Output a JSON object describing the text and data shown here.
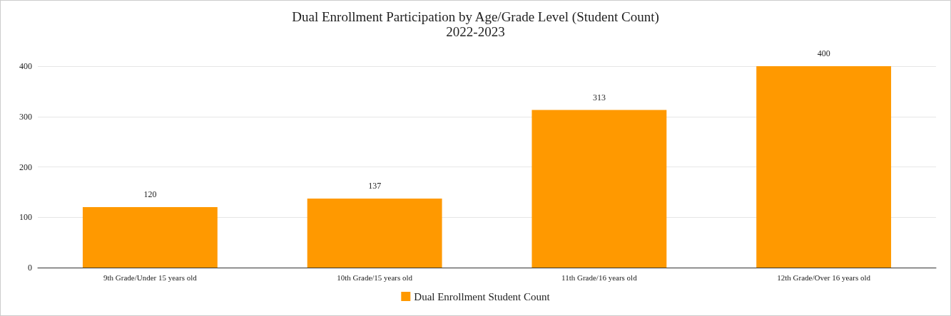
{
  "chart_data": {
    "type": "bar",
    "title": "Dual Enrollment Participation by Age/Grade Level (Student Count)",
    "subtitle": "2022-2023",
    "categories": [
      "9th Grade/Under 15 years old",
      "10th Grade/15 years old",
      "11th Grade/16 years old",
      "12th Grade/Over 16 years old"
    ],
    "series": [
      {
        "name": "Dual Enrollment Student Count",
        "color": "#ff9900",
        "values": [
          120,
          137,
          313,
          400
        ]
      }
    ],
    "ylim": [
      0,
      400
    ],
    "yticks": [
      0,
      100,
      200,
      300,
      400
    ],
    "grid": "y",
    "legend": "bottom",
    "data_labels": true
  }
}
